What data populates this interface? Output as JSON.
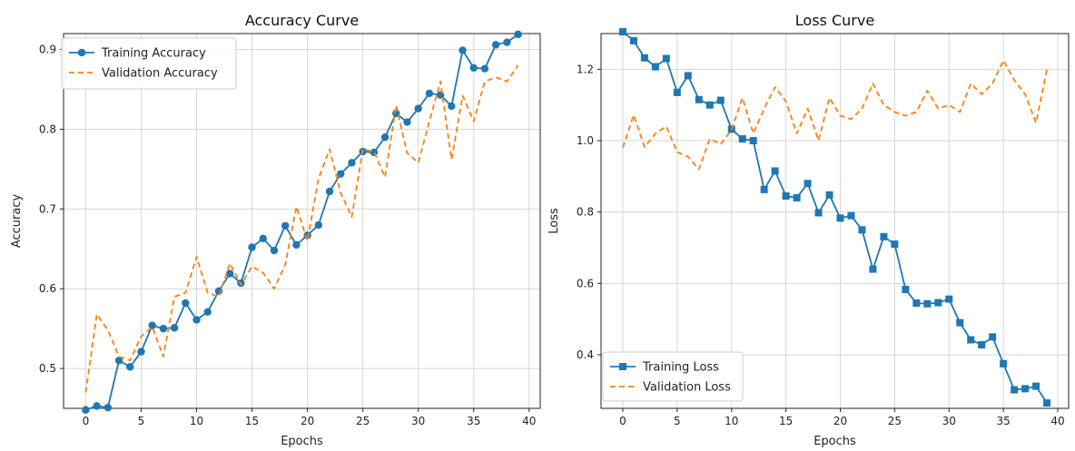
{
  "chart_data": [
    {
      "type": "line",
      "title": "Accuracy Curve",
      "xlabel": "Epochs",
      "ylabel": "Accuracy",
      "xlim": [
        -2,
        41
      ],
      "ylim": [
        0.45,
        0.92
      ],
      "xticks": [
        0,
        5,
        10,
        15,
        20,
        25,
        30,
        35,
        40
      ],
      "yticks": [
        0.5,
        0.6,
        0.7,
        0.8,
        0.9
      ],
      "ytick_labels": [
        "0.5",
        "0.6",
        "0.7",
        "0.8",
        "0.9"
      ],
      "grid": true,
      "legend_position": "top-left",
      "series": [
        {
          "name": "Training Accuracy",
          "color": "#1f77b4",
          "style": "solid",
          "marker": "circle",
          "x": [
            0,
            1,
            2,
            3,
            4,
            5,
            6,
            7,
            8,
            9,
            10,
            11,
            12,
            13,
            14,
            15,
            16,
            17,
            18,
            19,
            20,
            21,
            22,
            23,
            24,
            25,
            26,
            27,
            28,
            29,
            30,
            31,
            32,
            33,
            34,
            35,
            36,
            37,
            38,
            39
          ],
          "values": [
            0.448,
            0.453,
            0.451,
            0.51,
            0.502,
            0.521,
            0.554,
            0.55,
            0.551,
            0.582,
            0.561,
            0.571,
            0.597,
            0.619,
            0.607,
            0.652,
            0.663,
            0.648,
            0.679,
            0.655,
            0.667,
            0.68,
            0.722,
            0.744,
            0.758,
            0.772,
            0.771,
            0.79,
            0.82,
            0.809,
            0.826,
            0.845,
            0.843,
            0.829,
            0.899,
            0.877,
            0.876,
            0.906,
            0.909,
            0.919
          ]
        },
        {
          "name": "Validation Accuracy",
          "color": "#ff7f0e",
          "style": "dashed",
          "marker": "none",
          "x": [
            0,
            1,
            2,
            3,
            4,
            5,
            6,
            7,
            8,
            9,
            10,
            11,
            12,
            13,
            14,
            15,
            16,
            17,
            18,
            19,
            20,
            21,
            22,
            23,
            24,
            25,
            26,
            27,
            28,
            29,
            30,
            31,
            32,
            33,
            34,
            35,
            36,
            37,
            38,
            39
          ],
          "values": [
            0.47,
            0.568,
            0.548,
            0.515,
            0.51,
            0.54,
            0.552,
            0.515,
            0.59,
            0.595,
            0.64,
            0.595,
            0.59,
            0.632,
            0.605,
            0.628,
            0.62,
            0.6,
            0.63,
            0.703,
            0.66,
            0.738,
            0.775,
            0.72,
            0.69,
            0.775,
            0.772,
            0.74,
            0.83,
            0.77,
            0.758,
            0.81,
            0.86,
            0.762,
            0.842,
            0.81,
            0.86,
            0.865,
            0.86,
            0.88
          ]
        }
      ]
    },
    {
      "type": "line",
      "title": "Loss Curve",
      "xlabel": "Epochs",
      "ylabel": "Loss",
      "xlim": [
        -2,
        41
      ],
      "ylim": [
        0.25,
        1.3
      ],
      "xticks": [
        0,
        5,
        10,
        15,
        20,
        25,
        30,
        35,
        40
      ],
      "yticks": [
        0.4,
        0.6,
        0.8,
        1.0,
        1.2
      ],
      "ytick_labels": [
        "0.4",
        "0.6",
        "0.8",
        "1.0",
        "1.2"
      ],
      "grid": true,
      "legend_position": "bottom-left",
      "series": [
        {
          "name": "Training Loss",
          "color": "#1f77b4",
          "style": "solid",
          "marker": "square",
          "x": [
            0,
            1,
            2,
            3,
            4,
            5,
            6,
            7,
            8,
            9,
            10,
            11,
            12,
            13,
            14,
            15,
            16,
            17,
            18,
            19,
            20,
            21,
            22,
            23,
            24,
            25,
            26,
            27,
            28,
            29,
            30,
            31,
            32,
            33,
            34,
            35,
            36,
            37,
            38,
            39
          ],
          "values": [
            1.305,
            1.28,
            1.232,
            1.207,
            1.23,
            1.135,
            1.182,
            1.115,
            1.1,
            1.113,
            1.032,
            1.005,
            1.0,
            0.863,
            0.915,
            0.845,
            0.84,
            0.88,
            0.798,
            0.848,
            0.783,
            0.79,
            0.75,
            0.64,
            0.731,
            0.71,
            0.583,
            0.545,
            0.543,
            0.546,
            0.556,
            0.49,
            0.442,
            0.428,
            0.45,
            0.375,
            0.302,
            0.305,
            0.312,
            0.265
          ]
        },
        {
          "name": "Validation Loss",
          "color": "#ff7f0e",
          "style": "dashed",
          "marker": "none",
          "x": [
            0,
            1,
            2,
            3,
            4,
            5,
            6,
            7,
            8,
            9,
            10,
            11,
            12,
            13,
            14,
            15,
            16,
            17,
            18,
            19,
            20,
            21,
            22,
            23,
            24,
            25,
            26,
            27,
            28,
            29,
            30,
            31,
            32,
            33,
            34,
            35,
            36,
            37,
            38,
            39
          ],
          "values": [
            0.98,
            1.072,
            0.982,
            1.02,
            1.04,
            0.968,
            0.955,
            0.92,
            1.005,
            0.99,
            1.03,
            1.12,
            1.02,
            1.09,
            1.15,
            1.11,
            1.02,
            1.09,
            1.0,
            1.12,
            1.07,
            1.06,
            1.09,
            1.16,
            1.1,
            1.08,
            1.07,
            1.08,
            1.14,
            1.09,
            1.1,
            1.08,
            1.16,
            1.13,
            1.16,
            1.225,
            1.17,
            1.13,
            1.05,
            1.2
          ]
        }
      ]
    }
  ]
}
